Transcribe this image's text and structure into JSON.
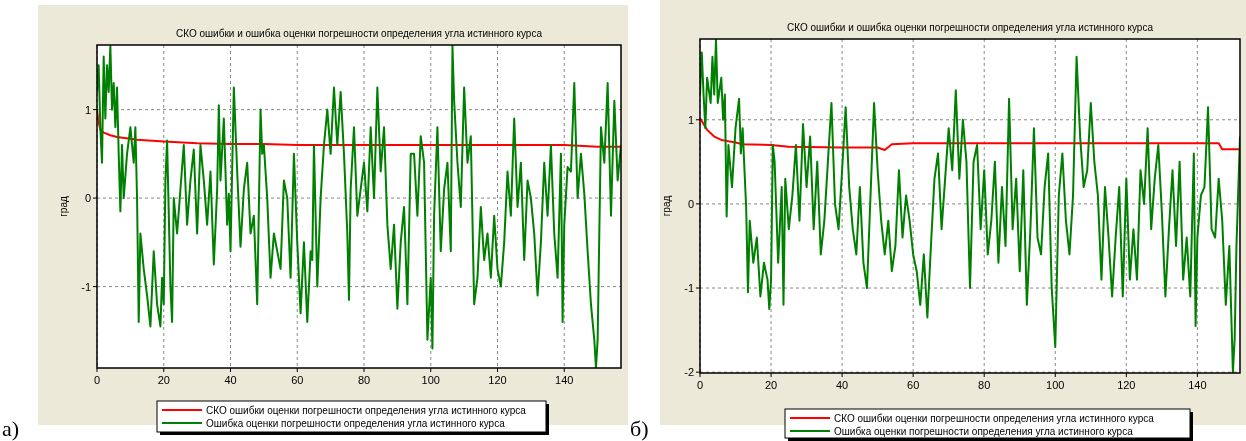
{
  "chart_data": [
    {
      "type": "line",
      "title": "СКО ошибки и ошибка оценки погрешности определения угла истинного курса",
      "ylabel": "град",
      "xlim": [
        0,
        157
      ],
      "ylim": [
        -1.92,
        1.73
      ],
      "xticks": [
        0,
        20,
        40,
        60,
        80,
        100,
        120,
        140
      ],
      "yticks": [
        -1,
        0,
        1
      ],
      "grid": true,
      "legend": "bottom",
      "annotations": [
        "а)"
      ],
      "series": [
        {
          "name": "СКО ошибки оценки погрешности определения угла истинного курса",
          "color": "#ff0000",
          "x": [
            0,
            0.3,
            1,
            2,
            4,
            6,
            10,
            12,
            20,
            30,
            40,
            50,
            60,
            70,
            80,
            100,
            140,
            150,
            157
          ],
          "values": [
            1.0,
            0.9,
            0.77,
            0.74,
            0.71,
            0.69,
            0.67,
            0.66,
            0.64,
            0.62,
            0.61,
            0.61,
            0.6,
            0.6,
            0.6,
            0.6,
            0.6,
            0.58,
            0.58
          ]
        },
        {
          "name": "Ошибка оценки погрешности определения угла истинного курса",
          "color": "#008000",
          "x": [
            0,
            0.5,
            1,
            1.5,
            2,
            2.5,
            3,
            3.5,
            4,
            4.5,
            5,
            5.5,
            6,
            6.5,
            7,
            7.5,
            8,
            9,
            10,
            11,
            11.5,
            12,
            12.5,
            13,
            14,
            15,
            16,
            17,
            18,
            19,
            19.5,
            20,
            20.5,
            21,
            22,
            22.5,
            23,
            24,
            25,
            26,
            27,
            28,
            29,
            30,
            31,
            32,
            33,
            34,
            35,
            36,
            36.5,
            37,
            38,
            39,
            39.5,
            40,
            41,
            42,
            43,
            44,
            45,
            46,
            47,
            48,
            49,
            49.5,
            50,
            51,
            52,
            53,
            54,
            55,
            56,
            57,
            58,
            59,
            60,
            61,
            62,
            63,
            64,
            64.5,
            65,
            66,
            67,
            68,
            69,
            70,
            71,
            72,
            73,
            74,
            75,
            75.5,
            76,
            77,
            78,
            79,
            80,
            81,
            82,
            83,
            84,
            85,
            86,
            87,
            88,
            89,
            90,
            91,
            92,
            93,
            94,
            95,
            96,
            97,
            98,
            99,
            100,
            100.5,
            101,
            102,
            103,
            104,
            105,
            106,
            106.5,
            107,
            108,
            109,
            110,
            111,
            112,
            113,
            114,
            115,
            116,
            117,
            118,
            119,
            120,
            121,
            122,
            123,
            124,
            125,
            126,
            127,
            128,
            129,
            130,
            131,
            132,
            133,
            134,
            135,
            136,
            137,
            138,
            139,
            139.5,
            140,
            141,
            142,
            143,
            144,
            145,
            146,
            147,
            148,
            149,
            149.5,
            150,
            151,
            152,
            153,
            154,
            155,
            156,
            157
          ],
          "values": [
            1.2,
            1.5,
            0.8,
            0.4,
            1.6,
            0.9,
            1.5,
            1.2,
            1.72,
            1.0,
            1.3,
            0.8,
            1.25,
            0.5,
            -0.15,
            0.6,
            0.0,
            0.5,
            0.8,
            0.4,
            0.8,
            0.0,
            -1.4,
            -0.4,
            -0.8,
            -1.1,
            -1.45,
            -0.6,
            -1.2,
            -1.45,
            -0.9,
            -1.2,
            0.2,
            0.65,
            -1.0,
            -1.4,
            0.0,
            -0.4,
            0.1,
            0.6,
            -0.3,
            0.2,
            0.55,
            -0.4,
            0.6,
            0.2,
            -0.3,
            0.3,
            -0.75,
            0.1,
            1.05,
            0.2,
            0.9,
            -0.3,
            0.05,
            -0.6,
            1.25,
            0.3,
            -0.55,
            0.1,
            0.4,
            -0.4,
            -0.2,
            -1.2,
            1.0,
            0.5,
            0.6,
            0.0,
            -0.9,
            -0.4,
            -0.6,
            -0.8,
            0.2,
            0.0,
            -0.9,
            0.5,
            -0.5,
            -1.3,
            -0.5,
            -1.4,
            -0.6,
            -0.7,
            0.6,
            -1.0,
            0.0,
            0.6,
            1.0,
            0.5,
            1.25,
            0.6,
            1.2,
            0.5,
            -0.4,
            -1.15,
            0.1,
            0.8,
            -0.2,
            0.1,
            0.4,
            -0.15,
            0.8,
            0.0,
            1.25,
            0.3,
            0.8,
            -0.3,
            -0.8,
            -0.3,
            -1.25,
            -0.5,
            -0.1,
            -1.2,
            0.5,
            0.5,
            -0.2,
            0.7,
            0.4,
            -1.6,
            -0.9,
            -1.7,
            -0.2,
            0.8,
            -0.6,
            0.1,
            0.4,
            -0.6,
            1.72,
            1.1,
            0.4,
            -0.1,
            1.25,
            0.4,
            0.7,
            -1.2,
            -0.9,
            -0.1,
            -0.7,
            -0.4,
            -0.9,
            -0.2,
            -0.8,
            -1.0,
            -0.5,
            0.3,
            -0.2,
            0.9,
            -0.1,
            0.4,
            -0.7,
            0.2,
            0.0,
            -0.4,
            -1.1,
            -0.5,
            0.4,
            -0.2,
            0.6,
            -0.4,
            -0.9,
            0.5,
            -1.4,
            -0.3,
            0.35,
            0.3,
            1.3,
            0.0,
            0.5,
            0.05,
            -0.6,
            -1.2,
            -1.6,
            -1.92,
            -1.6,
            0.8,
            0.4,
            1.3,
            -0.2,
            1.1,
            0.2,
            0.6
          ]
        }
      ]
    },
    {
      "type": "line",
      "title": "СКО ошибки и ошибка оценки погрешности определения угла истинного курса",
      "ylabel": "град",
      "xlim": [
        0,
        152
      ],
      "ylim": [
        -2.01,
        1.96
      ],
      "xticks": [
        0,
        20,
        40,
        60,
        80,
        100,
        120,
        140
      ],
      "yticks": [
        -2,
        -1,
        0,
        1
      ],
      "grid": true,
      "legend": "bottom",
      "annotations": [
        "б)"
      ],
      "series": [
        {
          "name": "СКО ошибки оценки погрешности определения угла истинного курса",
          "color": "#ff0000",
          "x": [
            0,
            1,
            2,
            4,
            6,
            10,
            12,
            20,
            25,
            40,
            50,
            52,
            54,
            60,
            100,
            146,
            147,
            152
          ],
          "values": [
            1.02,
            0.95,
            0.88,
            0.8,
            0.76,
            0.73,
            0.71,
            0.7,
            0.68,
            0.67,
            0.67,
            0.64,
            0.71,
            0.72,
            0.72,
            0.72,
            0.65,
            0.65
          ]
        },
        {
          "name": "Ошибка оценки погрешности определения угла истинного курса",
          "color": "#008000",
          "x": [
            0,
            0.5,
            1,
            1.5,
            2,
            3,
            3.5,
            4,
            4.5,
            5,
            6,
            6.5,
            7,
            7.5,
            8,
            9,
            10,
            11,
            11.5,
            12,
            13,
            13.5,
            14,
            15,
            16,
            17,
            18,
            19,
            19.5,
            20,
            20.5,
            21,
            22,
            23,
            23.5,
            24,
            25,
            26,
            27,
            28,
            29,
            30,
            31,
            32,
            33,
            34,
            35,
            36,
            37,
            38,
            39,
            40,
            41,
            42,
            43,
            44,
            45,
            46,
            47,
            48,
            49,
            50,
            51,
            52,
            53,
            54,
            55,
            56,
            57,
            58,
            59,
            60,
            61,
            62,
            63,
            64,
            65,
            66,
            67,
            68,
            69,
            70,
            71,
            72,
            73,
            74,
            75,
            76,
            77,
            78,
            79,
            80,
            81,
            82,
            83,
            84,
            85,
            86,
            87,
            88,
            89,
            90,
            91,
            92,
            93,
            94,
            95,
            96,
            97,
            98,
            99,
            100,
            100.5,
            101,
            102,
            103,
            104,
            105,
            106,
            107,
            108,
            109,
            110,
            111,
            112,
            113,
            114,
            115,
            116,
            117,
            118,
            119,
            120,
            121,
            122,
            123,
            124,
            125,
            126,
            127,
            128,
            129,
            130,
            131,
            132,
            133,
            134,
            135,
            136,
            137,
            138,
            139,
            139.5,
            140,
            141,
            142,
            143,
            144,
            145,
            146,
            147,
            148,
            149,
            150,
            150.5,
            151,
            152
          ],
          "values": [
            1.3,
            1.8,
            1.3,
            0.9,
            1.5,
            1.2,
            1.75,
            1.3,
            1.95,
            1.2,
            1.5,
            1.0,
            1.3,
            -0.15,
            0.7,
            0.2,
            0.9,
            1.25,
            0.6,
            0.9,
            -0.05,
            -1.05,
            -0.2,
            -0.7,
            -0.4,
            -1.1,
            -0.7,
            -0.9,
            -1.25,
            -0.9,
            0.7,
            0.5,
            -0.7,
            0.2,
            -1.2,
            0.3,
            -0.3,
            0.1,
            0.7,
            -0.2,
            0.95,
            0.2,
            0.8,
            -0.3,
            0.5,
            -0.6,
            -0.2,
            0.5,
            1.2,
            0.0,
            -0.3,
            0.4,
            1.15,
            0.2,
            -0.3,
            -0.6,
            0.2,
            -0.7,
            -1.0,
            0.1,
            1.2,
            0.4,
            -0.2,
            -0.6,
            -0.2,
            -0.8,
            -0.5,
            0.4,
            -0.4,
            0.1,
            -0.2,
            -0.6,
            -0.8,
            -1.2,
            -0.6,
            -1.35,
            -0.5,
            0.3,
            0.6,
            -0.3,
            0.3,
            0.9,
            0.4,
            1.35,
            0.3,
            1.0,
            0.5,
            -1.0,
            0.5,
            0.7,
            -0.3,
            0.4,
            -0.6,
            -0.2,
            0.5,
            -0.7,
            0.2,
            -0.5,
            1.25,
            -0.3,
            0.3,
            -0.8,
            0.4,
            -1.2,
            -0.3,
            0.9,
            -0.4,
            -0.6,
            0.2,
            0.6,
            -1.0,
            -1.7,
            -0.8,
            0.1,
            0.6,
            -0.2,
            -0.6,
            0.1,
            1.75,
            0.8,
            0.2,
            0.4,
            1.2,
            0.5,
            0.1,
            -0.9,
            0.2,
            -0.4,
            -1.1,
            -0.4,
            0.2,
            -1.1,
            0.3,
            -0.9,
            -0.3,
            -0.9,
            0.4,
            0.0,
            0.9,
            -0.3,
            0.3,
            0.7,
            -0.1,
            -1.1,
            -0.3,
            0.4,
            -0.5,
            0.5,
            -0.9,
            -0.4,
            -1.1,
            0.6,
            -1.45,
            -0.4,
            0.1,
            0.2,
            1.15,
            -0.3,
            -0.4,
            0.3,
            -0.2,
            -1.2,
            -0.5,
            -2.0,
            -1.6,
            -0.5,
            0.8
          ]
        }
      ]
    }
  ]
}
